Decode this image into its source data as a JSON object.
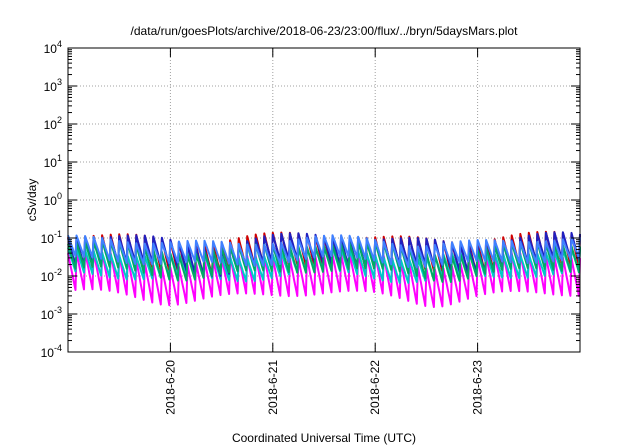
{
  "chart_data": {
    "type": "line",
    "title": "/data/run/goesPlots/archive/2018-06-23/23:00/flux/../bryn/5daysMars.plot",
    "xlabel": "Coordinated Universal Time (UTC)",
    "ylabel": "cSv/day",
    "yscale": "log",
    "ylim": [
      0.0001,
      10000
    ],
    "y_ticks": [
      {
        "value": 0.0001,
        "base": "10",
        "exp": "-4"
      },
      {
        "value": 0.001,
        "base": "10",
        "exp": "-3"
      },
      {
        "value": 0.01,
        "base": "10",
        "exp": "-2"
      },
      {
        "value": 0.1,
        "base": "10",
        "exp": "-1"
      },
      {
        "value": 1,
        "base": "10",
        "exp": "0"
      },
      {
        "value": 10,
        "base": "10",
        "exp": "1"
      },
      {
        "value": 100,
        "base": "10",
        "exp": "2"
      },
      {
        "value": 1000,
        "base": "10",
        "exp": "3"
      },
      {
        "value": 10000,
        "base": "10",
        "exp": "4"
      }
    ],
    "xlim": [
      "2018-06-19 00:00",
      "2018-06-24 00:00"
    ],
    "x_ticks": [
      "2018-6-20",
      "2018-6-21",
      "2018-6-22",
      "2018-6-23"
    ],
    "grid": true,
    "pattern_period_hours": 2,
    "series": [
      {
        "color": "#d00000",
        "peak": 0.105,
        "trough": 0.012,
        "mod": 0.4
      },
      {
        "color": "#ff00ff",
        "peak": 0.03,
        "trough": 0.0022,
        "mod": 0.5
      },
      {
        "color": "#00c8c8",
        "peak": 0.04,
        "trough": 0.008,
        "mod": 0.45
      },
      {
        "color": "#2020c0",
        "peak": 0.095,
        "trough": 0.015,
        "mod": 0.5
      },
      {
        "color": "#00aa66",
        "peak": 0.06,
        "trough": 0.01,
        "mod": 0.45
      },
      {
        "color": "#4080ff",
        "peak": 0.085,
        "trough": 0.02,
        "mod": 0.4
      }
    ]
  }
}
